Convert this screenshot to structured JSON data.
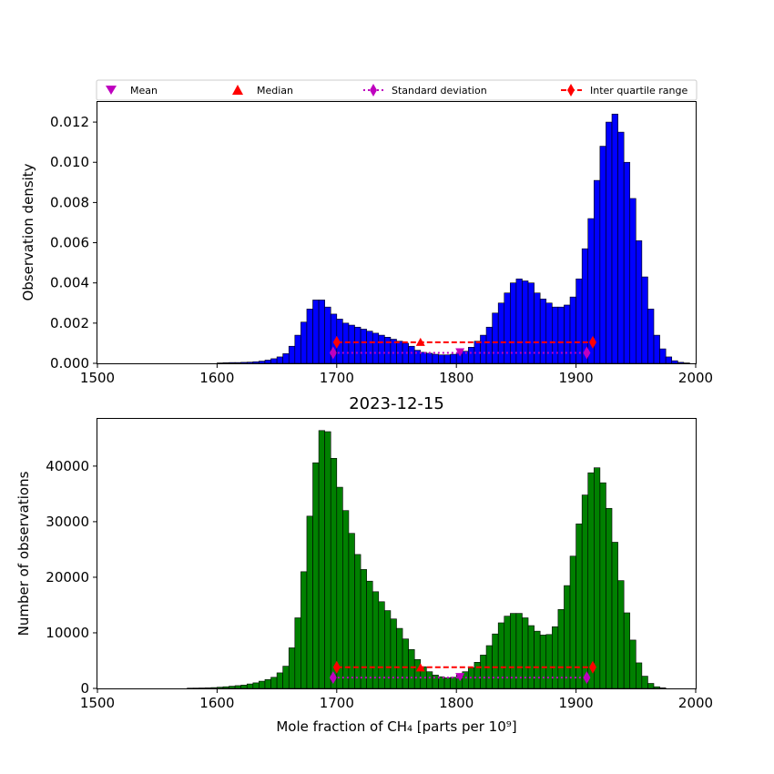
{
  "legend": {
    "location": "top-center",
    "entries": [
      {
        "label": "Mean",
        "marker": "triangle-down",
        "color": "#bf00bf"
      },
      {
        "label": "Median",
        "marker": "triangle-up",
        "color": "#ff0000"
      },
      {
        "label": "Standard deviation",
        "marker": "diamond",
        "line": "dotted",
        "color": "#bf00bf"
      },
      {
        "label": "Inter quartile range",
        "marker": "diamond",
        "line": "dashed",
        "color": "#ff0000"
      }
    ]
  },
  "colors": {
    "top_bars": "#0000ff",
    "bottom_bars": "#008000",
    "edge": "#000000"
  },
  "chart_data": [
    {
      "type": "bar",
      "title": "",
      "xlabel": "",
      "ylabel": "Observation density",
      "xlim": [
        1500,
        2000
      ],
      "ylim": [
        0,
        0.013
      ],
      "xticks": [
        "1500",
        "1600",
        "1700",
        "1800",
        "1900",
        "2000"
      ],
      "yticks": [
        "0.000",
        "0.002",
        "0.004",
        "0.006",
        "0.008",
        "0.010",
        "0.012"
      ],
      "ytick_values": [
        0,
        0.002,
        0.004,
        0.006,
        0.008,
        0.01,
        0.012
      ],
      "bin_width": 5,
      "bin_start": 1600,
      "values": [
        2e-05,
        3e-05,
        4e-05,
        4e-05,
        5e-05,
        6e-05,
        8e-05,
        0.00011,
        0.00016,
        0.00023,
        0.00032,
        0.00048,
        0.00085,
        0.0014,
        0.00205,
        0.0027,
        0.00315,
        0.00315,
        0.0028,
        0.00245,
        0.0022,
        0.002,
        0.0019,
        0.0018,
        0.0017,
        0.0016,
        0.0015,
        0.0014,
        0.0013,
        0.0012,
        0.0011,
        0.001,
        0.00085,
        0.00065,
        0.00055,
        0.0005,
        0.00045,
        0.00042,
        0.00042,
        0.00045,
        0.0005,
        0.0006,
        0.0008,
        0.0011,
        0.0014,
        0.0018,
        0.0025,
        0.003,
        0.0035,
        0.004,
        0.0042,
        0.0041,
        0.004,
        0.0035,
        0.0032,
        0.003,
        0.0028,
        0.0028,
        0.0029,
        0.0033,
        0.0042,
        0.0057,
        0.0072,
        0.0091,
        0.0108,
        0.012,
        0.0124,
        0.0115,
        0.01,
        0.0082,
        0.0061,
        0.0043,
        0.0027,
        0.0014,
        0.00072,
        0.00032,
        0.00013,
        5e-05,
        2e-05
      ],
      "stats": {
        "mean": {
          "x": 1803,
          "y": 0.00052
        },
        "median": {
          "x": 1770,
          "y": 0.00105
        },
        "std": {
          "x": [
            1697,
            1909
          ],
          "y": 0.00052
        },
        "iqr": {
          "x": [
            1700,
            1914
          ],
          "y": 0.00105
        }
      }
    },
    {
      "type": "bar",
      "title": "2023-12-15",
      "xlabel": "Mole fraction of CH₄ [parts per 10⁹]",
      "ylabel": "Number of observations",
      "xlim": [
        1500,
        2000
      ],
      "ylim": [
        0,
        48500
      ],
      "xticks": [
        "1500",
        "1600",
        "1700",
        "1800",
        "1900",
        "2000"
      ],
      "yticks": [
        "0",
        "10000",
        "20000",
        "30000",
        "40000"
      ],
      "ytick_values": [
        0,
        10000,
        20000,
        30000,
        40000
      ],
      "bin_width": 5,
      "bin_start": 1575,
      "values": [
        50,
        60,
        80,
        100,
        150,
        220,
        300,
        400,
        500,
        600,
        800,
        1000,
        1300,
        1600,
        2000,
        2800,
        4000,
        7300,
        12700,
        21000,
        31000,
        40600,
        46400,
        46200,
        41400,
        36200,
        32000,
        27900,
        24100,
        21400,
        19300,
        17400,
        15600,
        14000,
        12500,
        10800,
        8900,
        7000,
        5200,
        3900,
        3000,
        2400,
        2100,
        1900,
        2000,
        2400,
        3000,
        3700,
        4700,
        6000,
        7700,
        9800,
        11800,
        13000,
        13500,
        13500,
        12700,
        11300,
        10300,
        9600,
        9700,
        11100,
        14200,
        18500,
        23800,
        29600,
        34800,
        38800,
        39700,
        37000,
        32400,
        26300,
        19400,
        13600,
        8700,
        4600,
        2200,
        900,
        300,
        100
      ],
      "stats": {
        "mean": {
          "x": 1803,
          "y": 1950
        },
        "median": {
          "x": 1770,
          "y": 3700
        },
        "std": {
          "x": [
            1697,
            1909
          ],
          "y": 1950
        },
        "iqr": {
          "x": [
            1700,
            1914
          ],
          "y": 3800
        }
      }
    }
  ]
}
